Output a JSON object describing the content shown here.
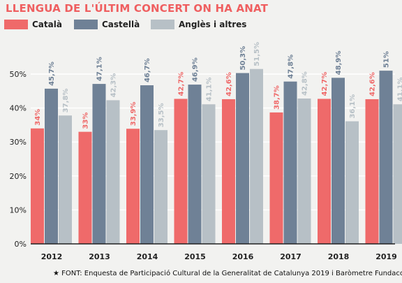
{
  "title": "LLENGUA DE L'ÚLTIM CONCERT ON HA ANAT",
  "footer": "★ FONT: Enquesta de Participació Cultural de la Generalitat de Catalunya 2019 i Baròmetre Fundacc",
  "colors": {
    "catala": "#ef6a6a",
    "castella": "#6f8196",
    "angles": "#b7c0c6",
    "grid": "#ffffff",
    "background": "#f2f2f0"
  },
  "chart_data": {
    "type": "bar",
    "title": "LLENGUA DE L'ÚLTIM CONCERT ON HA ANAT",
    "xlabel": "",
    "ylabel": "",
    "categories": [
      "2012",
      "2013",
      "2014",
      "2015",
      "2016",
      "2017",
      "2018",
      "2019"
    ],
    "series": [
      {
        "name": "Català",
        "values": [
          34,
          33,
          33.9,
          42.7,
          42.6,
          38.7,
          42.7,
          42.6
        ],
        "labels": [
          "34%",
          "33%",
          "33,9%",
          "42,7%",
          "42,6%",
          "38,7%",
          "42,7%",
          "42,6%"
        ]
      },
      {
        "name": "Castellà",
        "values": [
          45.7,
          47.1,
          46.7,
          46.9,
          50.3,
          47.8,
          48.9,
          51
        ],
        "labels": [
          "45,7%",
          "47,1%",
          "46,7%",
          "46,9%",
          "50,3%",
          "47,8%",
          "48,9%",
          "51%"
        ]
      },
      {
        "name": "Anglès i altres",
        "values": [
          37.8,
          42.3,
          33.5,
          41.1,
          51.5,
          42.8,
          36.1,
          41.1
        ],
        "labels": [
          "37,8%",
          "42,3%",
          "33,5%",
          "41,1%",
          "51,5%",
          "42,8%",
          "36,1%",
          "41,1%"
        ]
      }
    ],
    "ylim": [
      0,
      50
    ],
    "yticks": [
      0,
      10,
      20,
      30,
      40,
      50
    ],
    "ytick_labels": [
      "0%",
      "10%",
      "20%",
      "30%",
      "40%",
      "50%"
    ],
    "grid": true,
    "legend_position": "top-left"
  }
}
